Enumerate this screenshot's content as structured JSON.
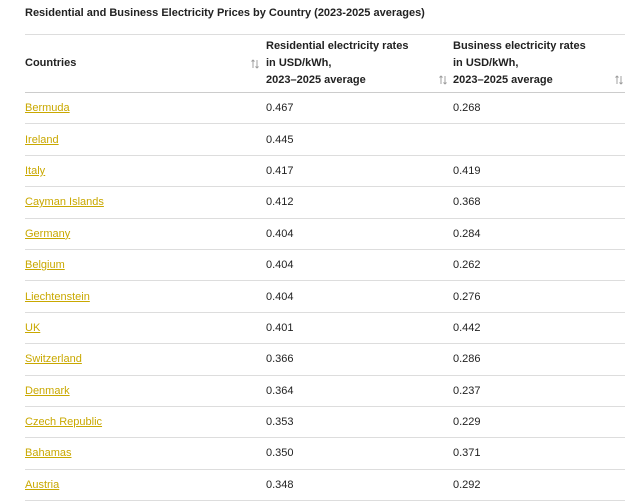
{
  "title": "Residential and Business Electricity Prices by Country (2023-2025 averages)",
  "table": {
    "headers": [
      [
        "Countries"
      ],
      [
        "Residential electricity rates",
        "in USD/kWh,",
        "2023–2025 average"
      ],
      [
        "Business electricity rates",
        "in USD/kWh,",
        "2023–2025 average"
      ]
    ],
    "rows": [
      [
        "Bermuda",
        "0.467",
        "0.268"
      ],
      [
        "Ireland",
        "0.445",
        null
      ],
      [
        "Italy",
        "0.417",
        "0.419"
      ],
      [
        "Cayman Islands",
        "0.412",
        "0.368"
      ],
      [
        "Germany",
        "0.404",
        "0.284"
      ],
      [
        "Belgium",
        "0.404",
        "0.262"
      ],
      [
        "Liechtenstein",
        "0.404",
        "0.276"
      ],
      [
        "UK",
        "0.401",
        "0.442"
      ],
      [
        "Switzerland",
        "0.366",
        "0.286"
      ],
      [
        "Denmark",
        "0.364",
        "0.237"
      ],
      [
        "Czech Republic",
        "0.353",
        "0.229"
      ],
      [
        "Bahamas",
        "0.350",
        "0.371"
      ],
      [
        "Austria",
        "0.348",
        "0.292"
      ]
    ]
  }
}
